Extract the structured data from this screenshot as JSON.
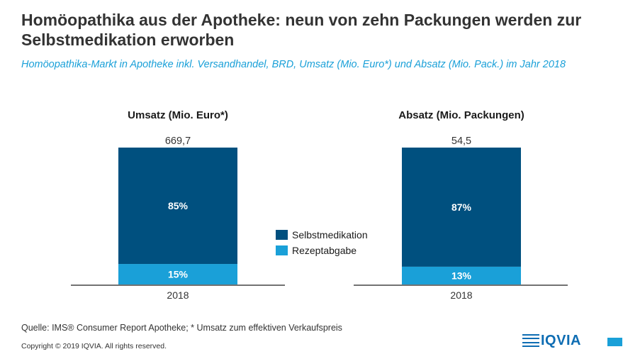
{
  "title": "Homöopathika aus der Apotheke: neun von zehn Packungen werden zur Selbstmedikation erworben",
  "subtitle": "Homöopathika-Markt in Apotheke inkl. Versandhandel, BRD, Umsatz (Mio. Euro*) und Absatz (Mio. Pack.) im Jahr 2018",
  "colors": {
    "selbst": "#00507f",
    "rezept": "#1aa0d8",
    "axis": "#444444"
  },
  "legend": [
    "Selbstmedikation",
    "Rezeptabgabe"
  ],
  "chart_data": [
    {
      "type": "bar",
      "stacked": true,
      "title": "Umsatz (Mio. Euro*)",
      "categories": [
        "2018"
      ],
      "total_label": "669,7",
      "series": [
        {
          "name": "Rezeptabgabe",
          "values": [
            15
          ],
          "label": "15%"
        },
        {
          "name": "Selbstmedikation",
          "values": [
            85
          ],
          "label": "85%"
        }
      ]
    },
    {
      "type": "bar",
      "stacked": true,
      "title": "Absatz (Mio. Packungen)",
      "categories": [
        "2018"
      ],
      "total_label": "54,5",
      "series": [
        {
          "name": "Rezeptabgabe",
          "values": [
            13
          ],
          "label": "13%"
        },
        {
          "name": "Selbstmedikation",
          "values": [
            87
          ],
          "label": "87%"
        }
      ]
    }
  ],
  "footer": {
    "source": "Quelle: IMS® Consumer Report Apotheke; * Umsatz zum effektiven Verkaufspreis",
    "copyright": "Copyright © 2019 IQVIA. All rights reserved.",
    "logo_text": "IQVIA"
  }
}
